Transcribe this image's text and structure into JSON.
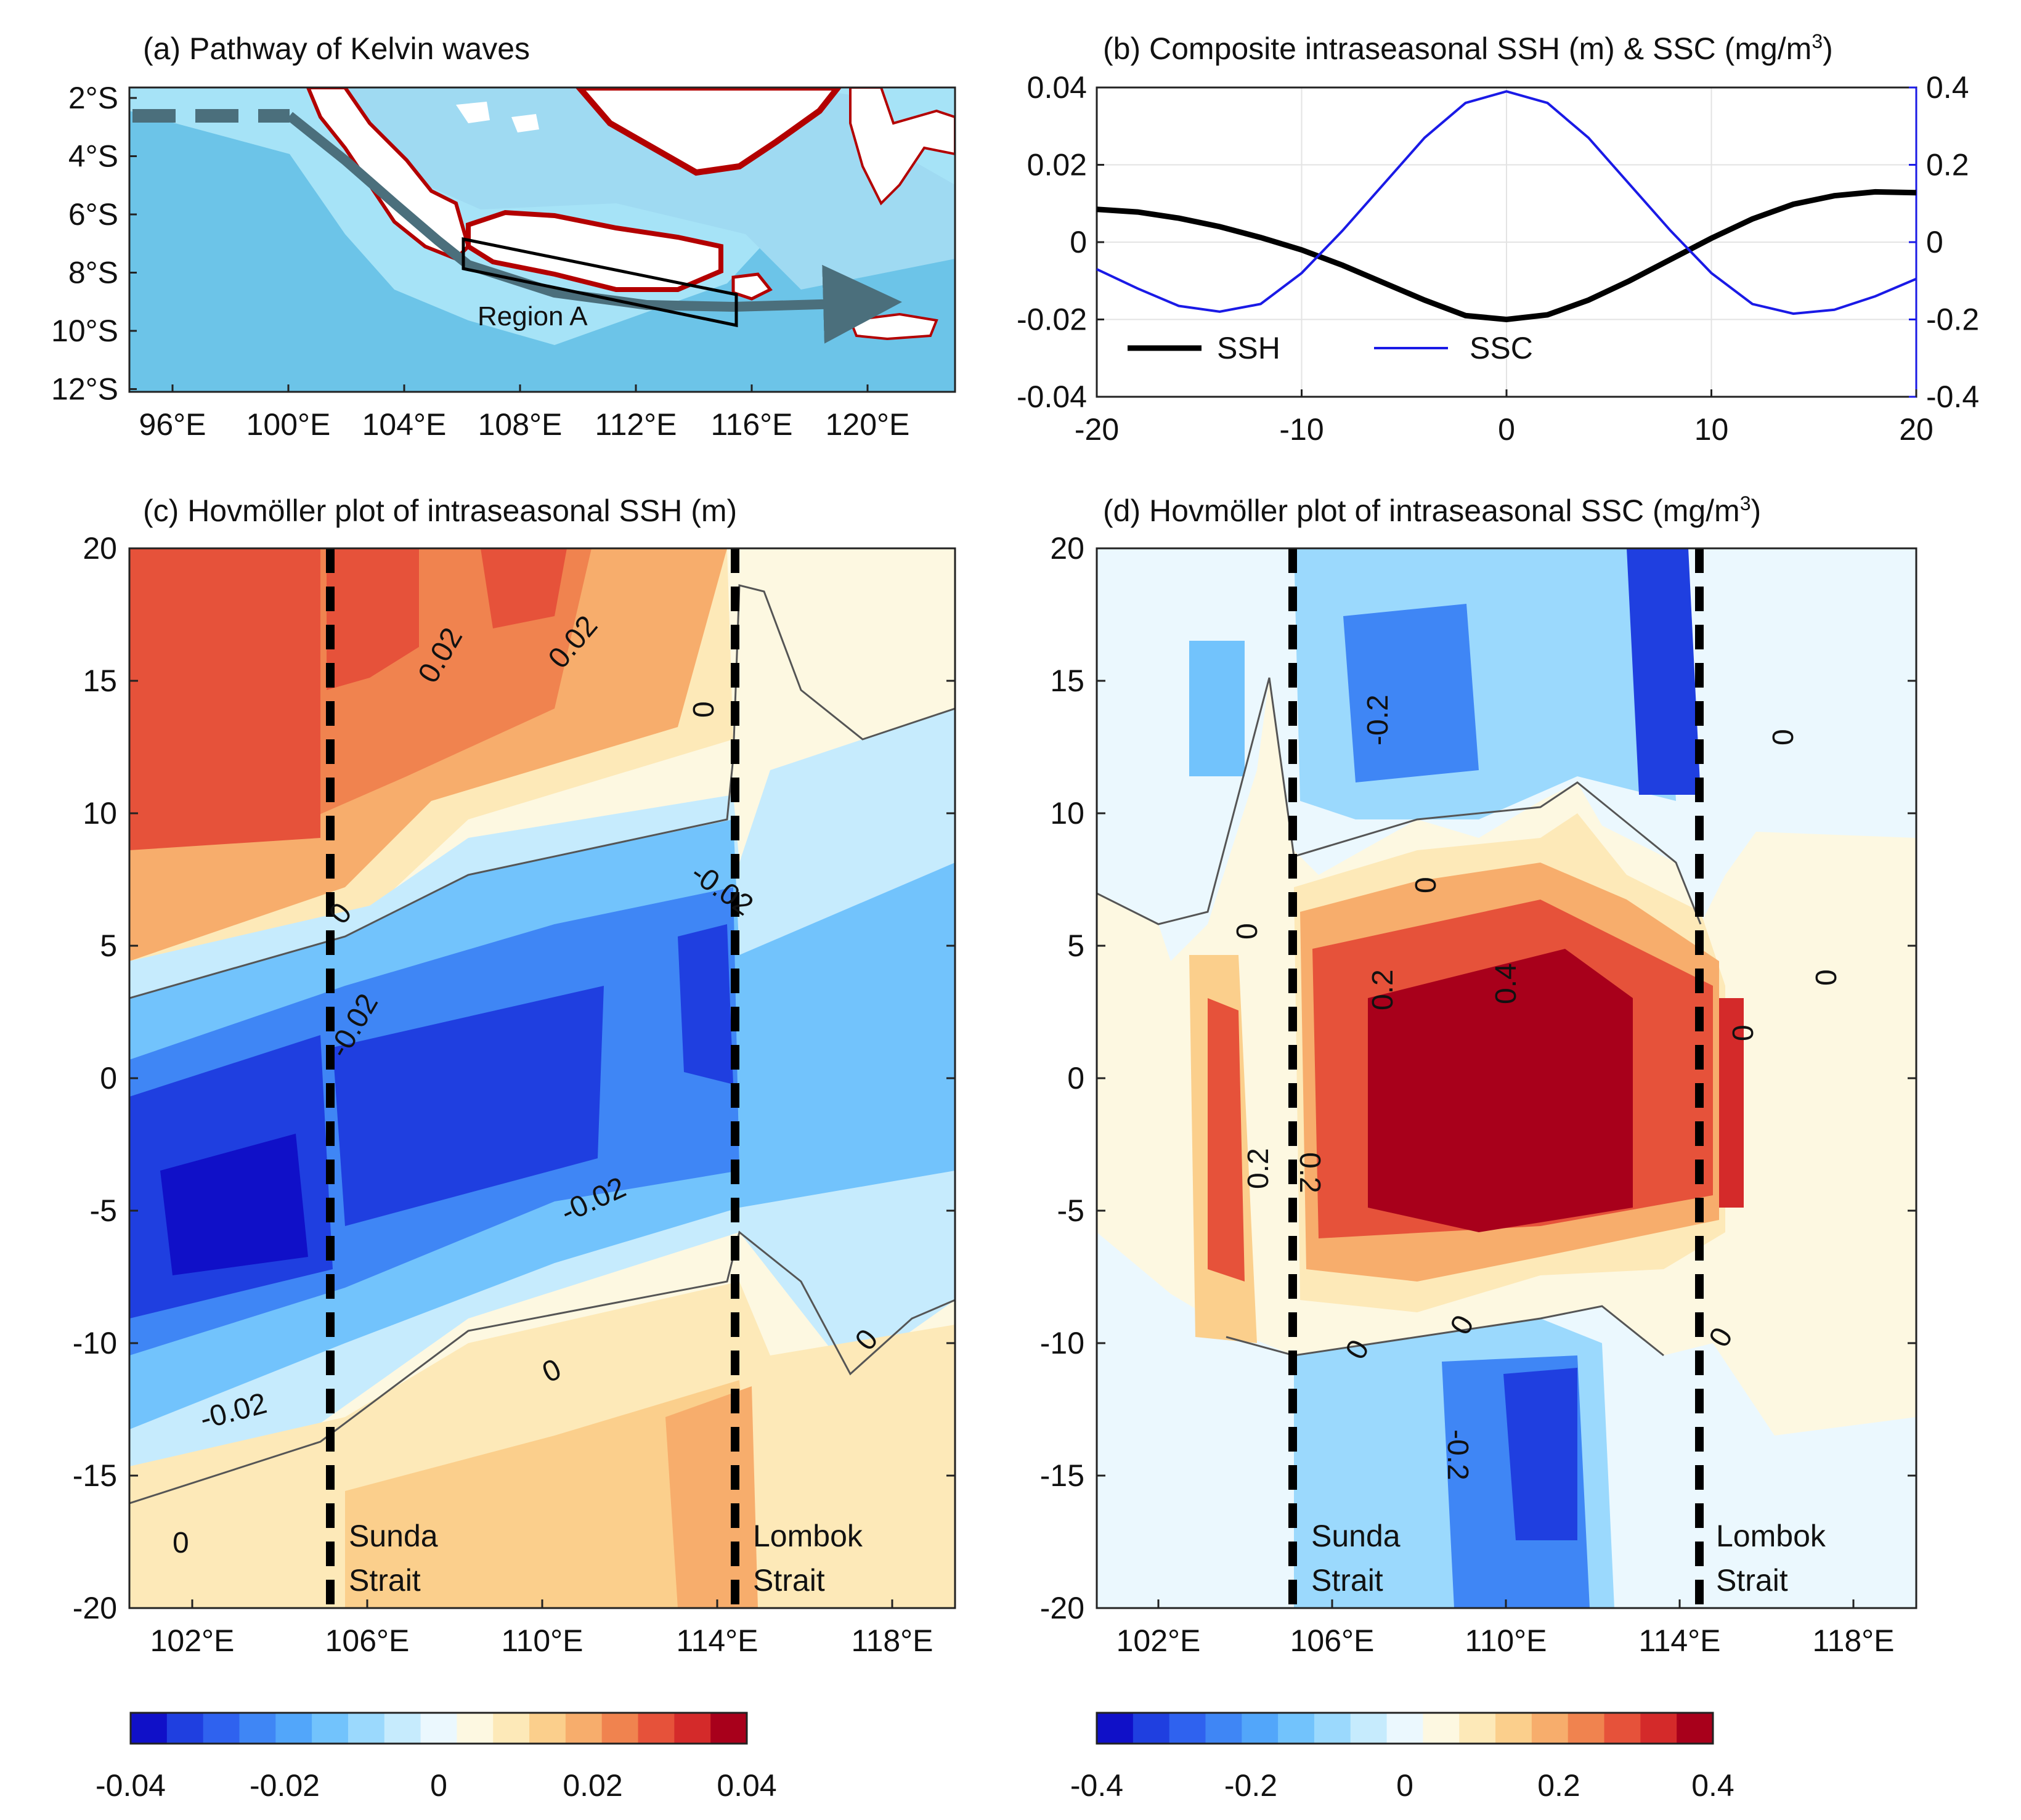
{
  "colors": {
    "ssh_line": "#000000",
    "ssc_line": "#1a1ae6",
    "strait_line": "#000000",
    "land": "#ffffff",
    "ocean_shallow": "#a6e3f7",
    "ocean_deep": "#6cc4e8",
    "coast_warm": "#b30000"
  },
  "colormap": [
    "#1010c8",
    "#1f3fe0",
    "#2f62ef",
    "#3f86f5",
    "#52a6fa",
    "#72c3fc",
    "#9bd9fd",
    "#c6ebfd",
    "#ebf8fe",
    "#fdf8e1",
    "#fde9b8",
    "#fbcf8c",
    "#f7ad6c",
    "#f0834f",
    "#e6523a",
    "#d42a2a",
    "#a8001b"
  ],
  "panels": {
    "a": {
      "title": "(a) Pathway of Kelvin waves",
      "region_label": "Region A",
      "xticks": [
        "96°E",
        "100°E",
        "104°E",
        "108°E",
        "112°E",
        "116°E",
        "120°E"
      ],
      "yticks": [
        "2°S",
        "4°S",
        "6°S",
        "8°S",
        "10°S",
        "12°S"
      ]
    },
    "b": {
      "title": "(b) Composite intraseasonal SSH (m) & SSC (mg/m",
      "title_sup": "3",
      "title_end": ")",
      "legend": [
        "SSH",
        "SSC"
      ],
      "yticks_left": [
        "0.04",
        "0.02",
        "0",
        "-0.02",
        "-0.04"
      ],
      "yticks_right": [
        "0.4",
        "0.2",
        "0",
        "-0.2",
        "-0.4"
      ],
      "xticks": [
        "-20",
        "-10",
        "0",
        "10",
        "20"
      ]
    },
    "c": {
      "title": "(c) Hovmöller plot of intraseasonal SSH (m)",
      "yticks": [
        "20",
        "15",
        "10",
        "5",
        "0",
        "-5",
        "-10",
        "-15",
        "-20"
      ],
      "xticks": [
        "102°E",
        "106°E",
        "110°E",
        "114°E",
        "118°E"
      ],
      "strait_labels": [
        [
          "Sunda",
          "Strait"
        ],
        [
          "Lombok",
          "Strait"
        ]
      ],
      "contour_labels": [
        "0.02",
        "0.02",
        "0",
        "0",
        "-0.02",
        "-0.02",
        "-0.02",
        "-0.02",
        "0",
        "0",
        "0"
      ],
      "colorbar_ticks": [
        "-0.04",
        "-0.02",
        "0",
        "0.02",
        "0.04"
      ]
    },
    "d": {
      "title": "(d) Hovmöller plot of intraseasonal SSC (mg/m",
      "title_sup": "3",
      "title_end": ")",
      "yticks": [
        "20",
        "15",
        "10",
        "5",
        "0",
        "-5",
        "-10",
        "-15",
        "-20"
      ],
      "xticks": [
        "102°E",
        "106°E",
        "110°E",
        "114°E",
        "118°E"
      ],
      "strait_labels": [
        [
          "Sunda",
          "Strait"
        ],
        [
          "Lombok",
          "Strait"
        ]
      ],
      "contour_labels": [
        "-0.2",
        "0",
        "0",
        "0.2",
        "0.4",
        "0",
        "0",
        "0.2",
        "0.2",
        "0",
        "0",
        "0",
        "0",
        "-0.2"
      ],
      "colorbar_ticks": [
        "-0.4",
        "-0.2",
        "0",
        "0.2",
        "0.4"
      ]
    }
  },
  "chart_data": [
    {
      "type": "line",
      "title": "(b) Composite intraseasonal SSH (m) & SSC (mg/m3)",
      "xlabel": "",
      "ylabel": "",
      "xlim": [
        -20,
        20
      ],
      "ylim_left": [
        -0.04,
        0.04
      ],
      "ylim_right": [
        -0.4,
        0.4
      ],
      "x": [
        -20,
        -18,
        -16,
        -14,
        -12,
        -10,
        -8,
        -6,
        -4,
        -2,
        0,
        2,
        4,
        6,
        8,
        10,
        12,
        14,
        16,
        18,
        20
      ],
      "series": [
        {
          "name": "SSH",
          "axis": "left",
          "values": [
            0.0085,
            0.0078,
            0.0062,
            0.004,
            0.0012,
            -0.002,
            -0.006,
            -0.0105,
            -0.015,
            -0.019,
            -0.02,
            -0.0188,
            -0.015,
            -0.01,
            -0.0045,
            0.001,
            0.006,
            0.0098,
            0.012,
            0.013,
            0.0128
          ]
        },
        {
          "name": "SSC",
          "axis": "right",
          "values": [
            -0.07,
            -0.12,
            -0.165,
            -0.18,
            -0.16,
            -0.08,
            0.03,
            0.15,
            0.27,
            0.36,
            0.39,
            0.36,
            0.27,
            0.15,
            0.03,
            -0.08,
            -0.16,
            -0.185,
            -0.175,
            -0.14,
            -0.095
          ]
        }
      ]
    },
    {
      "type": "heatmap",
      "title": "(c) Hovmöller plot of intraseasonal SSH (m)",
      "xlim": [
        101,
        119
      ],
      "ylim": [
        -20,
        20
      ],
      "clim": [
        -0.04,
        0.04
      ],
      "straits": [
        {
          "name": "Sunda Strait",
          "lon": 105.3
        },
        {
          "name": "Lombok Strait",
          "lon": 114.3
        }
      ]
    },
    {
      "type": "heatmap",
      "title": "(d) Hovmöller plot of intraseasonal SSC (mg/m3)",
      "xlim": [
        101,
        119
      ],
      "ylim": [
        -20,
        20
      ],
      "clim": [
        -0.4,
        0.4
      ],
      "straits": [
        {
          "name": "Sunda Strait",
          "lon": 105.3
        },
        {
          "name": "Lombok Strait",
          "lon": 114.3
        }
      ]
    }
  ]
}
